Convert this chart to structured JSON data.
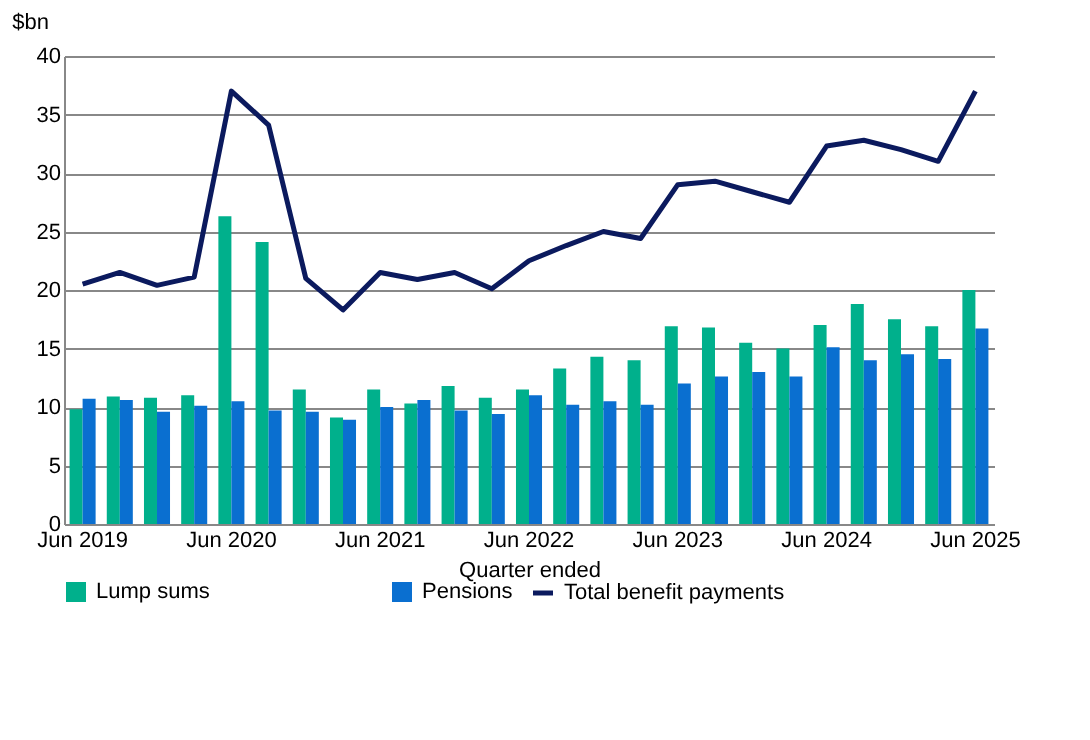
{
  "chart_data": {
    "type": "bar",
    "xlabel": "Quarter ended",
    "ylabel": "$bn",
    "categories": [
      "Jun 2019",
      null,
      null,
      null,
      "Jun 2020",
      null,
      null,
      null,
      "Jun 2021",
      null,
      null,
      null,
      "Jun 2022",
      null,
      null,
      null,
      "Jun 2023",
      null,
      null,
      null,
      "Jun 2024",
      null,
      null,
      null,
      "Jun 2025"
    ],
    "series": [
      {
        "name": "Lump sums",
        "color": "#00b08c",
        "values": [
          9.8,
          10.9,
          10.8,
          11.0,
          26.3,
          24.1,
          11.5,
          9.1,
          11.5,
          10.3,
          11.8,
          10.8,
          11.5,
          13.3,
          14.3,
          14.0,
          16.9,
          16.8,
          15.5,
          15.0,
          17.0,
          18.8,
          17.5,
          16.9,
          20.0
        ]
      },
      {
        "name": "Pensions",
        "color": "#0a6fd0",
        "values": [
          10.7,
          10.6,
          9.6,
          10.1,
          10.5,
          9.7,
          9.6,
          8.9,
          10.0,
          10.6,
          9.7,
          9.4,
          11.0,
          10.2,
          10.5,
          10.2,
          12.0,
          12.6,
          13.0,
          12.6,
          15.1,
          14.0,
          14.5,
          14.1,
          16.7
        ]
      },
      {
        "name": "Total benefit payments",
        "type": "line",
        "color": "#0b1a5e",
        "values": [
          20.5,
          21.5,
          20.4,
          21.1,
          37.0,
          34.1,
          21.0,
          18.3,
          21.5,
          20.9,
          21.5,
          20.1,
          22.5,
          23.8,
          25.0,
          24.4,
          29.0,
          29.3,
          28.4,
          27.5,
          32.3,
          32.8,
          32.0,
          31.0,
          37.0
        ]
      }
    ],
    "ylim": [
      0,
      40
    ],
    "yticks": [
      0,
      5,
      10,
      15,
      20,
      25,
      30,
      35,
      40
    ],
    "grid": "y",
    "legend": "bottom"
  }
}
